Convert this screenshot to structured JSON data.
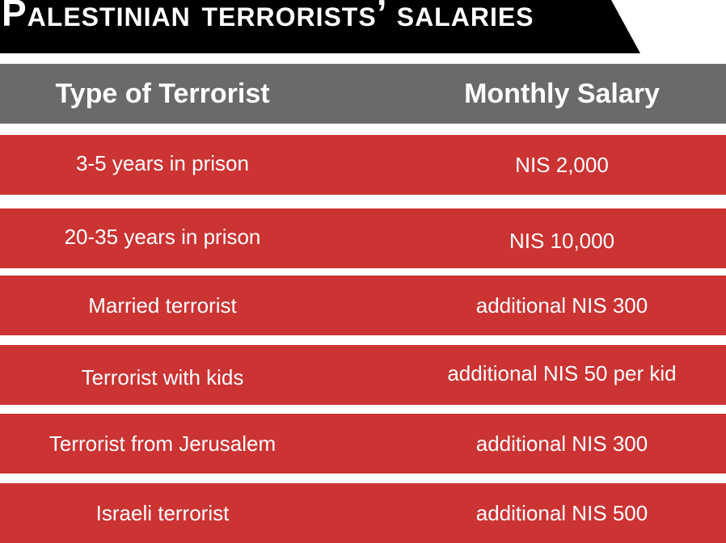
{
  "banner": {
    "title": "Palestinian terrorists’ salaries"
  },
  "table": {
    "headers": {
      "type": "Type of Terrorist",
      "salary": "Monthly Salary"
    },
    "rows": [
      {
        "type": "3-5 years in prison",
        "salary": "NIS 2,000"
      },
      {
        "type": "20-35 years in prison",
        "salary": "NIS 10,000"
      },
      {
        "type": "Married terrorist",
        "salary": "additional NIS 300"
      },
      {
        "type": "Terrorist with kids",
        "salary": "additional NIS 50 per kid"
      },
      {
        "type": "Terrorist from Jerusalem",
        "salary": "additional NIS 300"
      },
      {
        "type": "Israeli terrorist",
        "salary": "additional NIS 500"
      }
    ]
  },
  "colors": {
    "header": "#6a6a6a",
    "row": "#cc3333",
    "banner": "#000000",
    "text": "#ffffff"
  }
}
